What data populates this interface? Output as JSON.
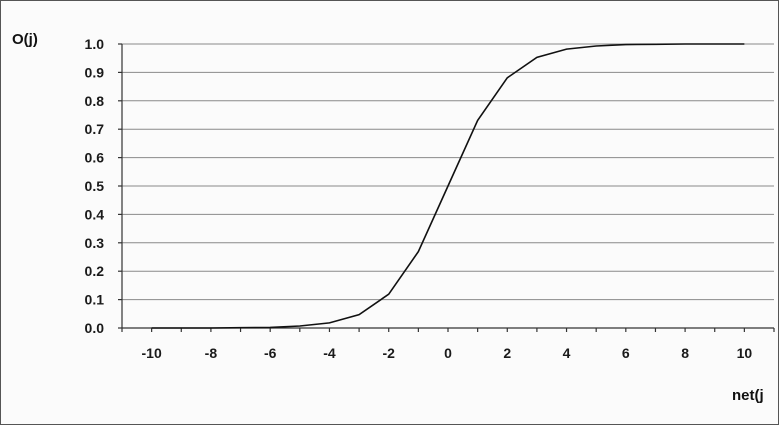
{
  "chart_data": {
    "type": "line",
    "title": "",
    "xlabel": "net(j",
    "ylabel": "O(j)",
    "xlim": [
      -11,
      11
    ],
    "ylim": [
      0,
      1
    ],
    "x_ticks": [
      -10,
      -8,
      -6,
      -4,
      -2,
      0,
      2,
      4,
      6,
      8,
      10
    ],
    "x_tick_labels": [
      "-10",
      "-8",
      "-6",
      "-4",
      "-2",
      "0",
      "2",
      "4",
      "6",
      "8",
      "10"
    ],
    "y_ticks": [
      0.0,
      0.1,
      0.2,
      0.3,
      0.4,
      0.5,
      0.6,
      0.7,
      0.8,
      0.9,
      1.0
    ],
    "y_tick_labels": [
      "0.0",
      "0.1",
      "0.2",
      "0.3",
      "0.4",
      "0.5",
      "0.6",
      "0.7",
      "0.8",
      "0.9",
      "1.0"
    ],
    "grid": "horizontal",
    "legend": "none",
    "series": [
      {
        "x": [
          -10,
          -9,
          -8,
          -7,
          -6,
          -5,
          -4,
          -3,
          -2,
          -1,
          0,
          1,
          2,
          3,
          4,
          5,
          6,
          7,
          8,
          9,
          10
        ],
        "values": [
          0.0,
          0.0,
          0.0,
          0.001,
          0.002,
          0.007,
          0.018,
          0.047,
          0.119,
          0.269,
          0.5,
          0.731,
          0.881,
          0.953,
          0.982,
          0.993,
          0.998,
          0.999,
          1.0,
          1.0,
          1.0
        ],
        "color": "#111111"
      }
    ]
  }
}
